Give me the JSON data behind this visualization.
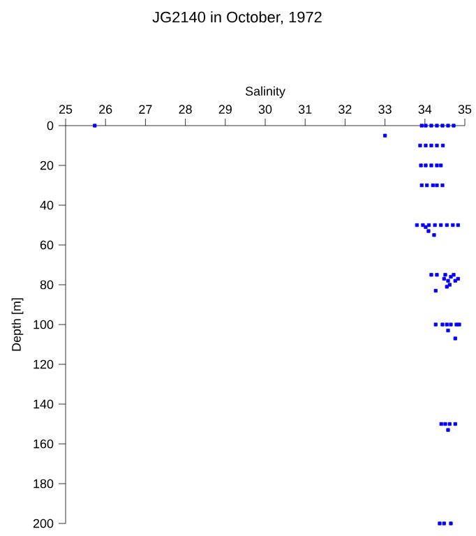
{
  "chart_data": {
    "type": "scatter",
    "title": "JG2140 in October, 1972",
    "xlabel": "Salinity",
    "ylabel": "Depth [m]",
    "x": [
      25.73,
      33.92,
      34.02,
      34.16,
      34.3,
      34.44,
      34.58,
      34.72,
      33.0,
      33.88,
      34.02,
      34.16,
      34.3,
      34.45,
      33.9,
      34.02,
      34.16,
      34.3,
      34.4,
      33.92,
      34.05,
      34.2,
      34.3,
      34.44,
      33.8,
      33.95,
      34.1,
      34.25,
      34.4,
      34.55,
      34.7,
      34.83,
      34.02,
      34.09,
      34.23,
      34.16,
      34.3,
      34.51,
      34.72,
      34.48,
      34.58,
      34.65,
      34.76,
      34.83,
      34.62,
      34.55,
      34.27,
      34.27,
      34.44,
      34.55,
      34.65,
      34.79,
      34.86,
      34.58,
      34.76,
      34.41,
      34.51,
      34.62,
      34.76,
      34.58,
      34.37,
      34.48,
      34.65
    ],
    "values": [
      0,
      0,
      0,
      0,
      0,
      0,
      0,
      0,
      5,
      10,
      10,
      10,
      10,
      10,
      20,
      20,
      20,
      20,
      20,
      30,
      30,
      30,
      30,
      30,
      50,
      50,
      50,
      50,
      50,
      50,
      50,
      50,
      51,
      53,
      55,
      75,
      75,
      75,
      75,
      77,
      78,
      76,
      78,
      77,
      80,
      81,
      83,
      100,
      100,
      100,
      100,
      100,
      100,
      103,
      107,
      150,
      150,
      150,
      150,
      153,
      200,
      200,
      200
    ],
    "color": "#0000ff",
    "marker": "square",
    "xlim": [
      25,
      35
    ],
    "xticks": [
      25,
      26,
      27,
      28,
      29,
      30,
      31,
      32,
      33,
      34,
      35
    ],
    "ylim": [
      200,
      0
    ],
    "yticks": [
      0,
      20,
      40,
      60,
      80,
      100,
      120,
      140,
      160,
      180,
      200
    ]
  }
}
